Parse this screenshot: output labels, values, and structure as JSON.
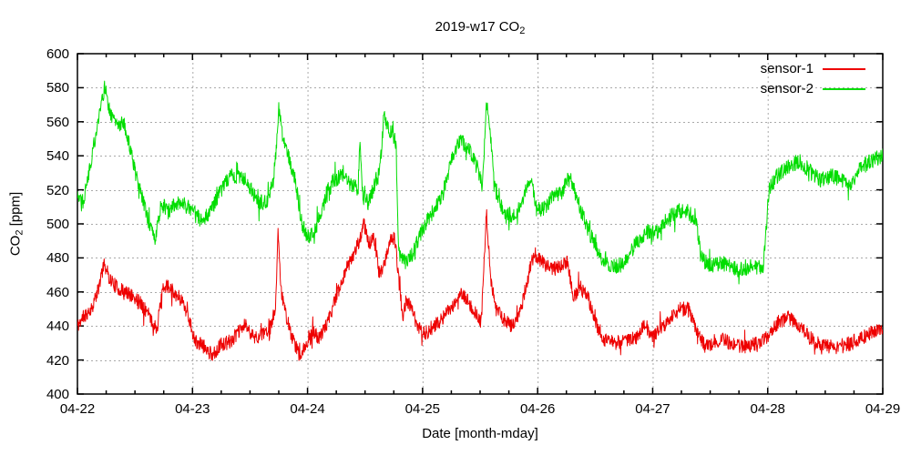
{
  "title": {
    "main": "2019-w17 CO",
    "sub": "2"
  },
  "axes": {
    "y_label": {
      "main": "CO",
      "sub": "2",
      "rest": " [ppm]"
    },
    "x_label": "Date [month-mday]",
    "y_tick_labels": [
      "400",
      "420",
      "440",
      "460",
      "480",
      "500",
      "520",
      "540",
      "560",
      "580",
      "600"
    ],
    "x_tick_labels": [
      "04-22",
      "04-23",
      "04-24",
      "04-25",
      "04-26",
      "04-27",
      "04-28",
      "04-29"
    ]
  },
  "legend": {
    "entries": [
      {
        "label": "sensor-1",
        "color": "#ee0000"
      },
      {
        "label": "sensor-2",
        "color": "#00dd00"
      }
    ]
  },
  "style": {
    "grid_color": "#a9a9a9",
    "axis_color": "#000000",
    "background": "#ffffff"
  },
  "chart_data": {
    "type": "line",
    "title": "2019-w17 CO2",
    "xlabel": "Date [month-mday]",
    "ylabel": "CO2 [ppm]",
    "ylim": [
      400,
      600
    ],
    "y_tick_step": 20,
    "x_range_days": 7,
    "x_tick_labels": [
      "04-22",
      "04-23",
      "04-24",
      "04-25",
      "04-26",
      "04-27",
      "04-28",
      "04-29"
    ],
    "grid": true,
    "legend_position": "top-right",
    "note": "t = days since 04-22 00:00; anchors give trend of noisy high-frequency signal",
    "series": [
      {
        "name": "sensor-1",
        "color": "#ee0000",
        "noise_ppm": 4.2,
        "seed": 11,
        "anchors": [
          [
            0.0,
            440
          ],
          [
            0.06,
            446
          ],
          [
            0.12,
            450
          ],
          [
            0.18,
            461
          ],
          [
            0.23,
            477
          ],
          [
            0.28,
            468
          ],
          [
            0.35,
            462
          ],
          [
            0.44,
            459
          ],
          [
            0.53,
            455
          ],
          [
            0.6,
            449
          ],
          [
            0.66,
            441
          ],
          [
            0.69,
            438
          ],
          [
            0.74,
            461
          ],
          [
            0.79,
            464
          ],
          [
            0.85,
            459
          ],
          [
            0.91,
            455
          ],
          [
            0.96,
            447
          ],
          [
            1.02,
            431
          ],
          [
            1.1,
            428
          ],
          [
            1.17,
            423
          ],
          [
            1.25,
            429
          ],
          [
            1.33,
            431
          ],
          [
            1.41,
            437
          ],
          [
            1.46,
            441
          ],
          [
            1.52,
            434
          ],
          [
            1.6,
            434
          ],
          [
            1.67,
            437
          ],
          [
            1.72,
            450
          ],
          [
            1.745,
            496
          ],
          [
            1.77,
            462
          ],
          [
            1.81,
            447
          ],
          [
            1.87,
            432
          ],
          [
            1.93,
            423
          ],
          [
            2.0,
            430
          ],
          [
            2.05,
            436
          ],
          [
            2.1,
            433
          ],
          [
            2.17,
            441
          ],
          [
            2.25,
            457
          ],
          [
            2.33,
            473
          ],
          [
            2.4,
            482
          ],
          [
            2.46,
            492
          ],
          [
            2.49,
            500
          ],
          [
            2.53,
            489
          ],
          [
            2.58,
            491
          ],
          [
            2.63,
            470
          ],
          [
            2.68,
            479
          ],
          [
            2.72,
            492
          ],
          [
            2.76,
            491
          ],
          [
            2.8,
            462
          ],
          [
            2.83,
            445
          ],
          [
            2.86,
            456
          ],
          [
            2.9,
            451
          ],
          [
            2.96,
            439
          ],
          [
            3.03,
            436
          ],
          [
            3.1,
            439
          ],
          [
            3.18,
            445
          ],
          [
            3.26,
            451
          ],
          [
            3.33,
            459
          ],
          [
            3.39,
            455
          ],
          [
            3.45,
            448
          ],
          [
            3.51,
            442
          ],
          [
            3.555,
            507
          ],
          [
            3.59,
            468
          ],
          [
            3.64,
            450
          ],
          [
            3.7,
            444
          ],
          [
            3.77,
            440
          ],
          [
            3.83,
            445
          ],
          [
            3.89,
            459
          ],
          [
            3.94,
            476
          ],
          [
            3.98,
            482
          ],
          [
            4.05,
            477
          ],
          [
            4.12,
            473
          ],
          [
            4.19,
            475
          ],
          [
            4.26,
            478
          ],
          [
            4.31,
            457
          ],
          [
            4.37,
            463
          ],
          [
            4.44,
            456
          ],
          [
            4.51,
            441
          ],
          [
            4.58,
            432
          ],
          [
            4.66,
            430
          ],
          [
            4.76,
            431
          ],
          [
            4.86,
            433
          ],
          [
            4.93,
            441
          ],
          [
            5.0,
            434
          ],
          [
            5.07,
            438
          ],
          [
            5.15,
            445
          ],
          [
            5.24,
            450
          ],
          [
            5.31,
            450
          ],
          [
            5.39,
            435
          ],
          [
            5.46,
            428
          ],
          [
            5.54,
            431
          ],
          [
            5.62,
            432
          ],
          [
            5.72,
            428
          ],
          [
            5.82,
            428
          ],
          [
            5.92,
            430
          ],
          [
            6.01,
            434
          ],
          [
            6.09,
            442
          ],
          [
            6.17,
            445
          ],
          [
            6.24,
            443
          ],
          [
            6.31,
            438
          ],
          [
            6.41,
            430
          ],
          [
            6.51,
            428
          ],
          [
            6.61,
            427
          ],
          [
            6.71,
            430
          ],
          [
            6.81,
            433
          ],
          [
            6.91,
            436
          ],
          [
            7.0,
            439
          ]
        ]
      },
      {
        "name": "sensor-2",
        "color": "#00dd00",
        "noise_ppm": 4.5,
        "seed": 22,
        "anchors": [
          [
            0.0,
            518
          ],
          [
            0.05,
            514
          ],
          [
            0.12,
            537
          ],
          [
            0.19,
            565
          ],
          [
            0.24,
            581
          ],
          [
            0.29,
            563
          ],
          [
            0.34,
            558
          ],
          [
            0.4,
            560
          ],
          [
            0.46,
            544
          ],
          [
            0.52,
            525
          ],
          [
            0.6,
            506
          ],
          [
            0.67,
            490
          ],
          [
            0.73,
            512
          ],
          [
            0.79,
            507
          ],
          [
            0.86,
            513
          ],
          [
            0.93,
            511
          ],
          [
            1.0,
            508
          ],
          [
            1.07,
            503
          ],
          [
            1.15,
            506
          ],
          [
            1.24,
            519
          ],
          [
            1.33,
            529
          ],
          [
            1.42,
            527
          ],
          [
            1.5,
            521
          ],
          [
            1.58,
            513
          ],
          [
            1.64,
            512
          ],
          [
            1.7,
            524
          ],
          [
            1.73,
            546
          ],
          [
            1.75,
            569
          ],
          [
            1.78,
            552
          ],
          [
            1.84,
            538
          ],
          [
            1.89,
            527
          ],
          [
            1.95,
            500
          ],
          [
            2.0,
            492
          ],
          [
            2.06,
            495
          ],
          [
            2.14,
            511
          ],
          [
            2.22,
            525
          ],
          [
            2.3,
            528
          ],
          [
            2.38,
            523
          ],
          [
            2.44,
            521
          ],
          [
            2.455,
            551
          ],
          [
            2.48,
            516
          ],
          [
            2.53,
            512
          ],
          [
            2.59,
            525
          ],
          [
            2.63,
            532
          ],
          [
            2.665,
            564
          ],
          [
            2.7,
            556
          ],
          [
            2.74,
            553
          ],
          [
            2.77,
            547
          ],
          [
            2.79,
            484
          ],
          [
            2.85,
            477
          ],
          [
            2.92,
            483
          ],
          [
            3.0,
            497
          ],
          [
            3.08,
            506
          ],
          [
            3.17,
            516
          ],
          [
            3.26,
            540
          ],
          [
            3.33,
            549
          ],
          [
            3.4,
            545
          ],
          [
            3.47,
            534
          ],
          [
            3.52,
            522
          ],
          [
            3.555,
            568
          ],
          [
            3.59,
            552
          ],
          [
            3.63,
            520
          ],
          [
            3.7,
            508
          ],
          [
            3.79,
            504
          ],
          [
            3.87,
            515
          ],
          [
            3.94,
            528
          ],
          [
            3.99,
            508
          ],
          [
            4.06,
            509
          ],
          [
            4.13,
            516
          ],
          [
            4.21,
            518
          ],
          [
            4.28,
            529
          ],
          [
            4.35,
            513
          ],
          [
            4.44,
            496
          ],
          [
            4.54,
            481
          ],
          [
            4.64,
            475
          ],
          [
            4.74,
            476
          ],
          [
            4.83,
            486
          ],
          [
            4.9,
            492
          ],
          [
            4.96,
            496
          ],
          [
            5.02,
            494
          ],
          [
            5.12,
            502
          ],
          [
            5.21,
            508
          ],
          [
            5.31,
            507
          ],
          [
            5.38,
            501
          ],
          [
            5.42,
            480
          ],
          [
            5.5,
            475
          ],
          [
            5.62,
            477
          ],
          [
            5.74,
            473
          ],
          [
            5.86,
            474
          ],
          [
            5.96,
            475
          ],
          [
            5.985,
            495
          ],
          [
            6.01,
            520
          ],
          [
            6.08,
            528
          ],
          [
            6.17,
            533
          ],
          [
            6.27,
            537
          ],
          [
            6.37,
            531
          ],
          [
            6.46,
            526
          ],
          [
            6.56,
            528
          ],
          [
            6.64,
            526
          ],
          [
            6.71,
            522
          ],
          [
            6.8,
            532
          ],
          [
            6.9,
            537
          ],
          [
            7.0,
            540
          ]
        ]
      }
    ]
  }
}
